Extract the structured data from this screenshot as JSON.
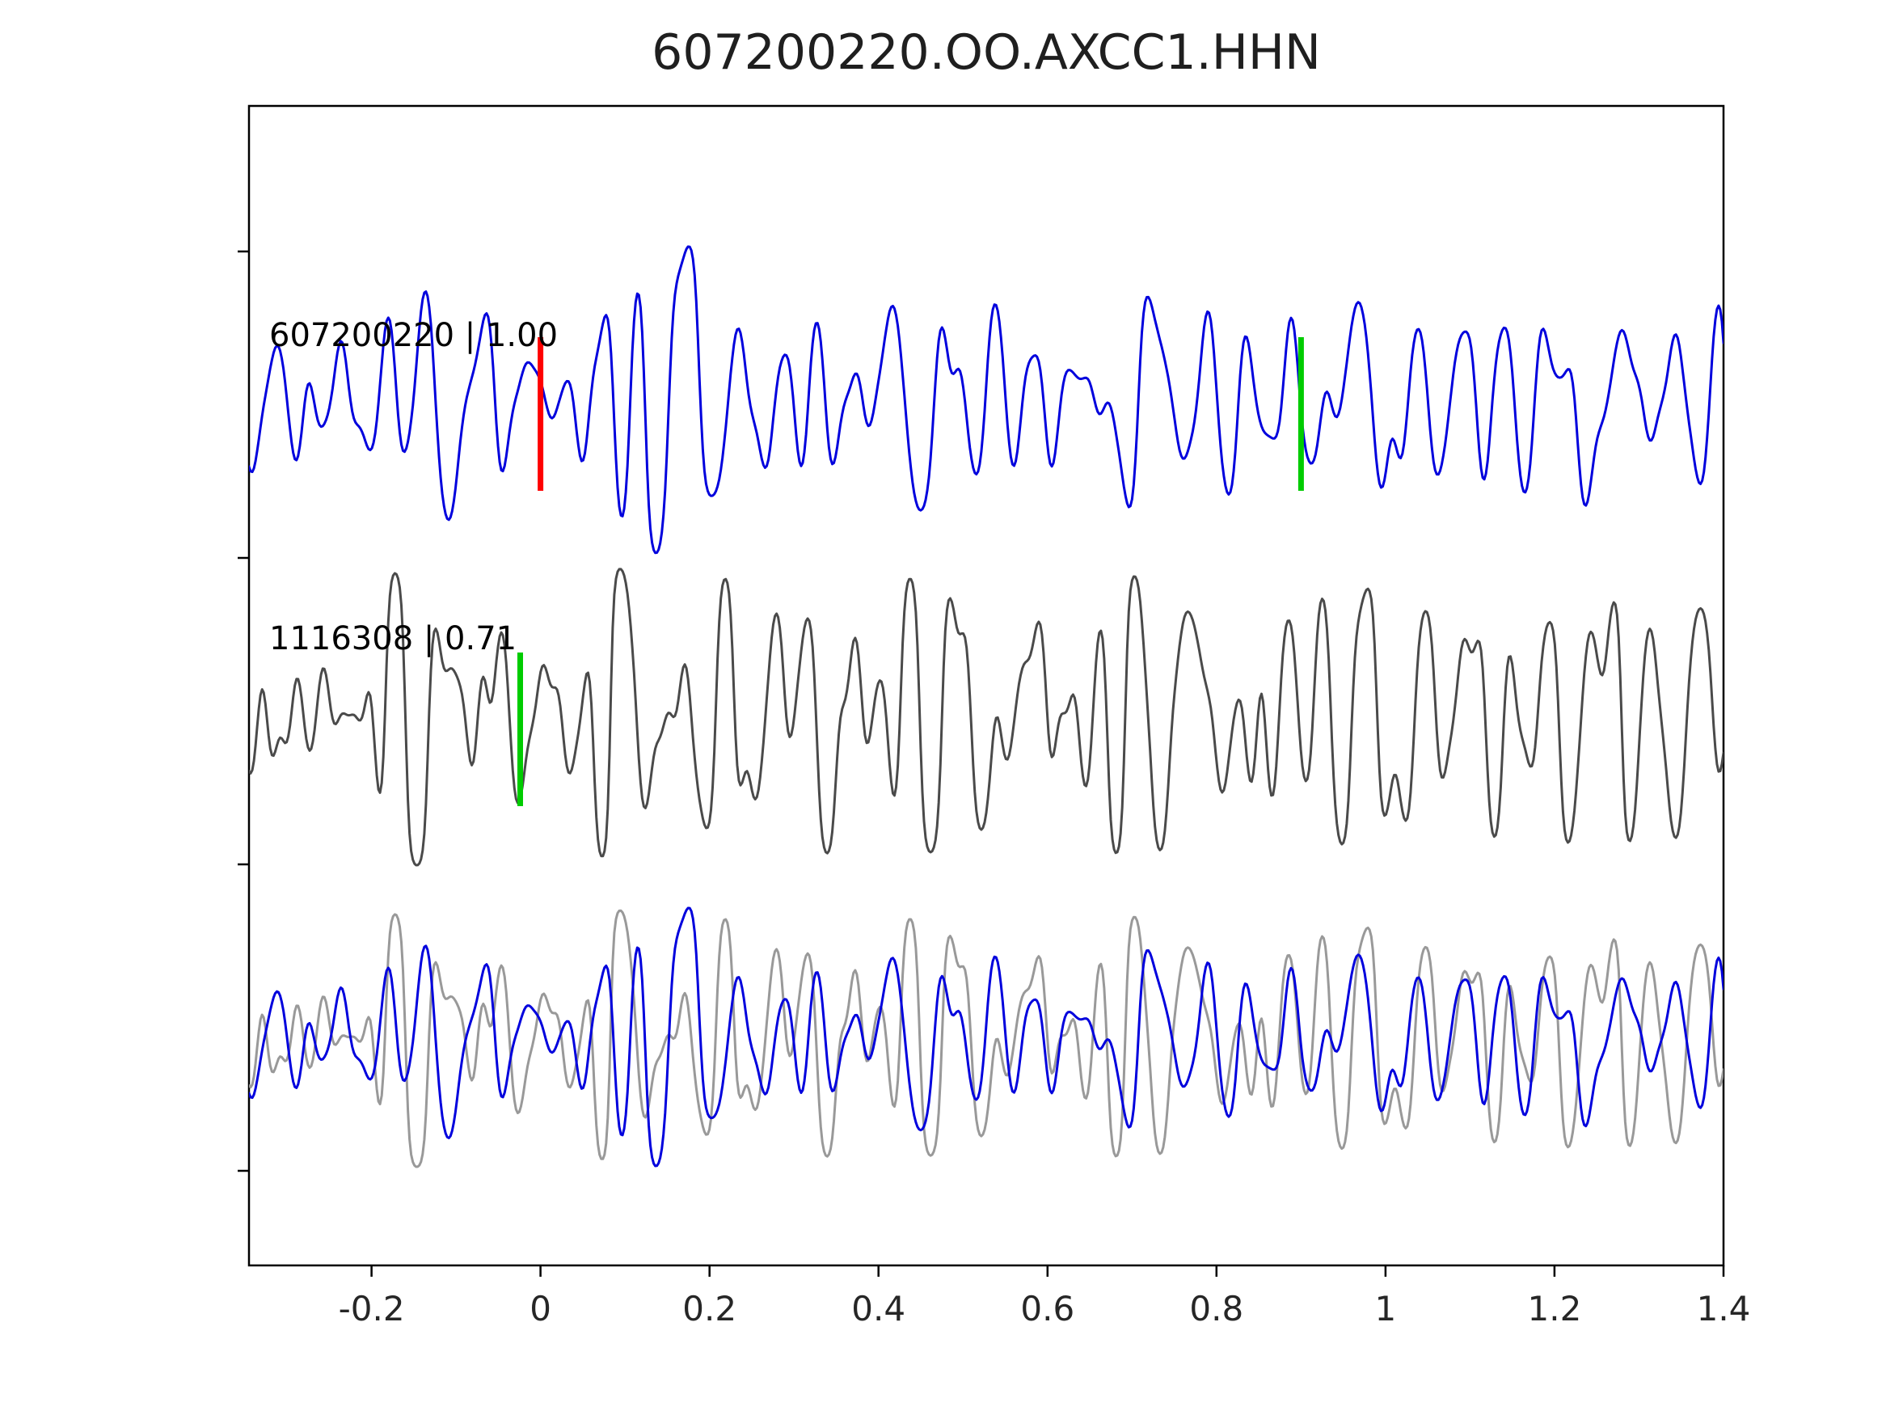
{
  "figure": {
    "title": "607200220.OO.AXCC1.HHN",
    "background": "#ffffff"
  },
  "chart_data": {
    "type": "line",
    "title": "607200220.OO.AXCC1.HHN",
    "subtitle": "",
    "xlabel": "",
    "ylabel": "",
    "x_range": [
      -0.345,
      1.4
    ],
    "x_ticks": [
      -0.2,
      0,
      0.2,
      0.4,
      0.6,
      0.8,
      1,
      1.2,
      1.4
    ],
    "x_tick_labels": [
      "-0.2",
      "0",
      "0.2",
      "0.4",
      "0.6",
      "0.8",
      "1",
      "1.2",
      "1.4"
    ],
    "y_tick_labels": [],
    "grid": false,
    "legend": "none",
    "axis_color": "#000000",
    "tick_label_color": "#262626",
    "panels": [
      {
        "id": "template-panel",
        "label": "607200220 | 1.00",
        "event_id": "607200220",
        "correlation": "1.00",
        "traces": [
          {
            "series": "template",
            "color": "#0000dd",
            "width": 3
          }
        ]
      },
      {
        "id": "detection-panel",
        "label": "1116308 | 0.71",
        "event_id": "1116308",
        "correlation": "0.71",
        "traces": [
          {
            "series": "detection",
            "color": "#4a4a4a",
            "width": 3
          }
        ]
      },
      {
        "id": "overlay-panel",
        "label": "",
        "traces": [
          {
            "series": "detection",
            "color": "#999999",
            "width": 3
          },
          {
            "series": "template",
            "color": "#0000dd",
            "width": 3
          }
        ]
      }
    ],
    "series_defs": {
      "template": {
        "components": [
          {
            "f": 5.3,
            "a": 0.3,
            "p": 1.7
          },
          {
            "f": 8.9,
            "a": 0.5,
            "p": 4.2
          },
          {
            "f": 12.6,
            "a": 0.85,
            "p": 0.9
          },
          {
            "f": 16.4,
            "a": 1.0,
            "p": 2.6
          },
          {
            "f": 19.7,
            "a": 0.9,
            "p": 5.1
          },
          {
            "f": 23.5,
            "a": 0.7,
            "p": 3.3
          },
          {
            "f": 28.1,
            "a": 0.45,
            "p": 0.4
          },
          {
            "f": 33.6,
            "a": 0.28,
            "p": 2.1
          },
          {
            "f": 41.2,
            "a": 0.16,
            "p": 4.9
          },
          {
            "f": 50.7,
            "a": 0.09,
            "p": 1.2
          }
        ],
        "envelope": {
          "center": 0.14,
          "sigma": 0.055,
          "gain": 0.9
        },
        "soft_clip": 1.2
      },
      "detection": {
        "components": [
          {
            "f": 6.1,
            "a": 0.35,
            "p": 3.9
          },
          {
            "f": 10.3,
            "a": 0.6,
            "p": 1.1
          },
          {
            "f": 14.7,
            "a": 0.95,
            "p": 5.6
          },
          {
            "f": 18.2,
            "a": 1.0,
            "p": 2.2
          },
          {
            "f": 22.8,
            "a": 0.85,
            "p": 0.7
          },
          {
            "f": 26.4,
            "a": 0.6,
            "p": 4.4
          },
          {
            "f": 31.3,
            "a": 0.42,
            "p": 2.9
          },
          {
            "f": 37.9,
            "a": 0.26,
            "p": 5.9
          },
          {
            "f": 45.6,
            "a": 0.14,
            "p": 1.8
          },
          {
            "f": 54.2,
            "a": 0.08,
            "p": 0.3
          }
        ],
        "envelope": {
          "center": 0.3,
          "sigma": 0.5,
          "gain": 0.15
        },
        "soft_clip": 1.8
      }
    },
    "markers": [
      {
        "panel": 0,
        "x": 0.0,
        "color": "#ff0000",
        "name": "red-pick-marker"
      },
      {
        "panel": 0,
        "x": 0.9,
        "color": "#00cc00",
        "name": "green-pick-marker-top"
      },
      {
        "panel": 1,
        "x": -0.024,
        "color": "#00cc00",
        "name": "green-pick-marker-middle"
      }
    ]
  }
}
